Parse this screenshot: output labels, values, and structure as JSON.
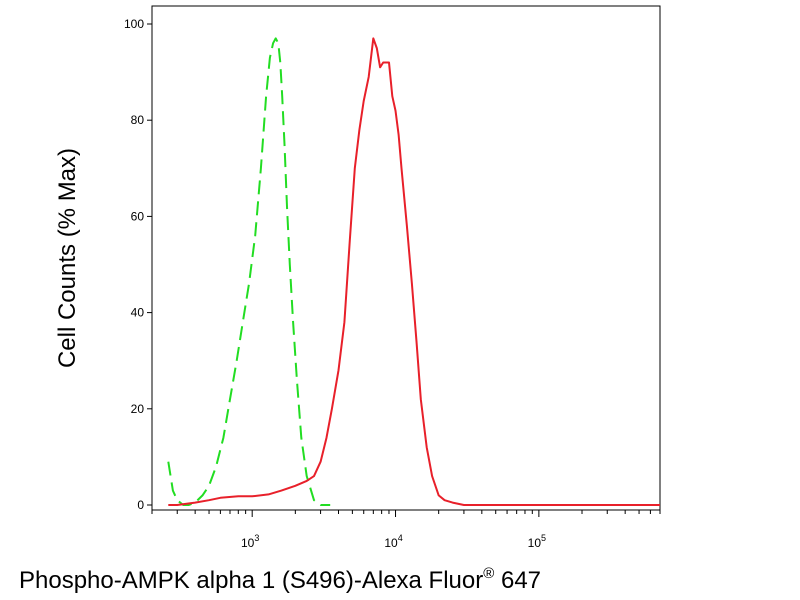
{
  "chart_data": {
    "type": "line",
    "xscale": "log",
    "xlabel": "Phospho-AMPK alpha 1 (S496)-Alexa Fluor",
    "xlabel_super": "®",
    "xlabel_suffix": " 647",
    "ylabel": "Cell Counts (% Max)",
    "xlim": [
      200,
      700000
    ],
    "ylim": [
      0,
      100
    ],
    "grid": false,
    "yticks": [
      {
        "value": 0,
        "label": "0"
      },
      {
        "value": 20,
        "label": "20"
      },
      {
        "value": 40,
        "label": "40"
      },
      {
        "value": 60,
        "label": "60"
      },
      {
        "value": 80,
        "label": "80"
      },
      {
        "value": 100,
        "label": "100"
      }
    ],
    "xticks": [
      {
        "value": 1000,
        "base": "10",
        "exp": "3"
      },
      {
        "value": 10000,
        "base": "10",
        "exp": "4"
      },
      {
        "value": 100000,
        "base": "10",
        "exp": "5"
      }
    ],
    "series": [
      {
        "color": "#22dd22",
        "dash": "dashed",
        "x": [
          260,
          280,
          300,
          330,
          360,
          400,
          450,
          500,
          560,
          630,
          700,
          780,
          860,
          950,
          1050,
          1150,
          1250,
          1330,
          1400,
          1460,
          1520,
          1570,
          1620,
          1680,
          1750,
          1830,
          1930,
          2050,
          2200,
          2400,
          2700,
          3000,
          3500
        ],
        "y": [
          9,
          3,
          1,
          0,
          0,
          0.5,
          2,
          4,
          8,
          14,
          22,
          30,
          38,
          46,
          56,
          70,
          85,
          93,
          96,
          97,
          96,
          92,
          85,
          75,
          62,
          50,
          38,
          26,
          14,
          6,
          1,
          0,
          0
        ]
      },
      {
        "color": "#e8202a",
        "dash": "solid",
        "x": [
          260,
          300,
          400,
          500,
          600,
          800,
          1000,
          1300,
          1600,
          2000,
          2400,
          2700,
          3000,
          3300,
          3600,
          4000,
          4400,
          4800,
          5200,
          5600,
          6000,
          6500,
          7000,
          7400,
          7800,
          8200,
          8600,
          9000,
          9500,
          10000,
          10500,
          11000,
          12000,
          13000,
          14000,
          15000,
          16500,
          18000,
          20000,
          22000,
          25000,
          30000,
          40000,
          60000,
          100000,
          200000,
          400000,
          700000
        ],
        "y": [
          0,
          0,
          0.5,
          1,
          1.5,
          1.8,
          1.8,
          2.2,
          3,
          4,
          5,
          6,
          9,
          14,
          20,
          28,
          38,
          55,
          70,
          78,
          84,
          89,
          97,
          95,
          91,
          92,
          92,
          92,
          85,
          82,
          77,
          70,
          58,
          46,
          34,
          22,
          12,
          6,
          2,
          1,
          0.5,
          0,
          0,
          0,
          0,
          0,
          0,
          0
        ]
      }
    ]
  }
}
